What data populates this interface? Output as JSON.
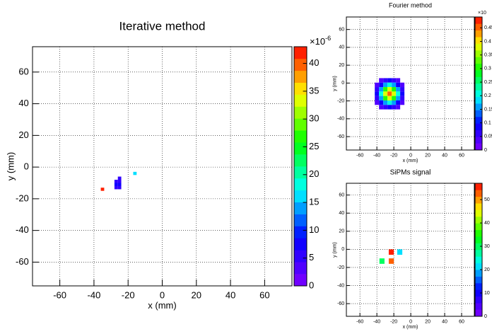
{
  "chart_data": [
    {
      "type": "heatmap",
      "title": "Iterative method",
      "x_label": "x (mm)",
      "y_label": "y (mm)",
      "xlim": [
        -76,
        76
      ],
      "ylim": [
        -75,
        76
      ],
      "xticks": [
        -60,
        -40,
        -20,
        0,
        20,
        40,
        60
      ],
      "yticks": [
        -60,
        -40,
        -20,
        0,
        20,
        40,
        60
      ],
      "zlim": [
        0,
        43
      ],
      "zticks": [
        0,
        5,
        10,
        15,
        20,
        25,
        30,
        35,
        40
      ],
      "z_multiplier": "×10",
      "z_exponent": "-6",
      "grid": true,
      "palette": [
        "#8000ff",
        "#0000ff",
        "#00ffff",
        "#00ff00",
        "#ffff00",
        "#ff0000"
      ],
      "cells": [
        [
          -25,
          -7,
          5
        ],
        [
          -27,
          -9,
          6
        ],
        [
          -25,
          -9,
          6
        ],
        [
          -27,
          -11,
          7
        ],
        [
          -25,
          -11,
          7
        ],
        [
          -27,
          -13,
          6
        ],
        [
          -25,
          -13,
          6
        ],
        [
          -35,
          -14,
          42
        ],
        [
          -16,
          -4,
          16
        ]
      ]
    },
    {
      "type": "heatmap",
      "title": "Fourier method",
      "x_label": "x (mm)",
      "y_label": "y (mm)",
      "xlim": [
        -76,
        75
      ],
      "ylim": [
        -75,
        74
      ],
      "xticks": [
        -60,
        -40,
        -20,
        0,
        20,
        40,
        60
      ],
      "yticks": [
        -60,
        -40,
        -20,
        0,
        20,
        40,
        60
      ],
      "zlim": [
        0,
        0.49
      ],
      "zticks": [
        0,
        0.05,
        0.1,
        0.15,
        0.2,
        0.25,
        0.3,
        0.35,
        0.4,
        0.45
      ],
      "z_multiplier": "×10",
      "grid": true,
      "palette": [
        "#8000ff",
        "#0000ff",
        "#00ffff",
        "#00ff00",
        "#ffff00",
        "#ff0000"
      ],
      "cells": [
        [
          -35,
          3,
          0.04
        ],
        [
          -30,
          3,
          0.06
        ],
        [
          -25,
          3,
          0.08
        ],
        [
          -20,
          3,
          0.06
        ],
        [
          -15,
          3,
          0.04
        ],
        [
          -40,
          -2,
          0.04
        ],
        [
          -35,
          -2,
          0.09
        ],
        [
          -30,
          -2,
          0.17
        ],
        [
          -25,
          -2,
          0.21
        ],
        [
          -20,
          -2,
          0.17
        ],
        [
          -15,
          -2,
          0.09
        ],
        [
          -10,
          -2,
          0.04
        ],
        [
          -40,
          -7,
          0.06
        ],
        [
          -35,
          -7,
          0.17
        ],
        [
          -30,
          -7,
          0.3
        ],
        [
          -25,
          -7,
          0.37
        ],
        [
          -20,
          -7,
          0.3
        ],
        [
          -15,
          -7,
          0.17
        ],
        [
          -10,
          -7,
          0.06
        ],
        [
          -40,
          -12,
          0.08
        ],
        [
          -35,
          -12,
          0.21
        ],
        [
          -30,
          -12,
          0.37
        ],
        [
          -25,
          -12,
          0.45
        ],
        [
          -20,
          -12,
          0.37
        ],
        [
          -15,
          -12,
          0.21
        ],
        [
          -10,
          -12,
          0.08
        ],
        [
          -40,
          -17,
          0.06
        ],
        [
          -35,
          -17,
          0.17
        ],
        [
          -30,
          -17,
          0.3
        ],
        [
          -25,
          -17,
          0.37
        ],
        [
          -20,
          -17,
          0.3
        ],
        [
          -15,
          -17,
          0.17
        ],
        [
          -10,
          -17,
          0.06
        ],
        [
          -40,
          -22,
          0.04
        ],
        [
          -35,
          -22,
          0.09
        ],
        [
          -30,
          -22,
          0.17
        ],
        [
          -25,
          -22,
          0.21
        ],
        [
          -20,
          -22,
          0.17
        ],
        [
          -15,
          -22,
          0.09
        ],
        [
          -10,
          -22,
          0.04
        ],
        [
          -35,
          -27,
          0.04
        ],
        [
          -30,
          -27,
          0.06
        ],
        [
          -25,
          -27,
          0.08
        ],
        [
          -20,
          -27,
          0.06
        ],
        [
          -15,
          -27,
          0.04
        ]
      ]
    },
    {
      "type": "heatmap",
      "title": "SiPMs signal",
      "x_label": "x (mm)",
      "y_label": "y (mm)",
      "xlim": [
        -76,
        75
      ],
      "ylim": [
        -74,
        73
      ],
      "xticks": [
        -60,
        -40,
        -20,
        0,
        20,
        40,
        60
      ],
      "yticks": [
        -60,
        -40,
        -20,
        0,
        20,
        40,
        60
      ],
      "zlim": [
        0,
        57
      ],
      "zticks": [
        0,
        10,
        20,
        30,
        40,
        50
      ],
      "grid": true,
      "palette": [
        "#8000ff",
        "#0000ff",
        "#00ffff",
        "#00ff00",
        "#ffff00",
        "#ff0000"
      ],
      "cells": [
        [
          -23,
          -3,
          55
        ],
        [
          -23,
          -13,
          54
        ],
        [
          -34,
          -13,
          30
        ],
        [
          -13,
          -3,
          22
        ]
      ]
    }
  ]
}
